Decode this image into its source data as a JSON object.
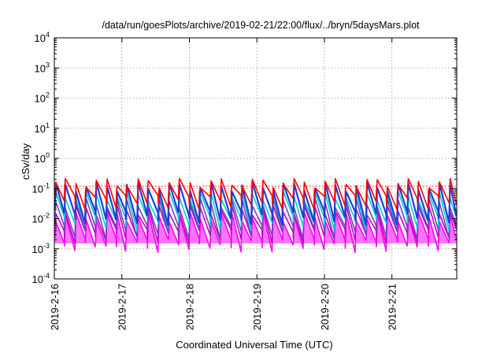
{
  "chart_data": {
    "type": "line",
    "title": "/data/run/goesPlots/archive/2019-02-21/22:00/flux/../bryn/5daysMars.plot",
    "xlabel": "Coordinated Universal Time (UTC)",
    "ylabel": "cSv/day",
    "y_scale": "log",
    "ylim": [
      0.0001,
      10000
    ],
    "y_ticks": [
      {
        "base": "10",
        "exp": "-4"
      },
      {
        "base": "10",
        "exp": "-3"
      },
      {
        "base": "10",
        "exp": "-2"
      },
      {
        "base": "10",
        "exp": "-1"
      },
      {
        "base": "10",
        "exp": "0"
      },
      {
        "base": "10",
        "exp": "1"
      },
      {
        "base": "10",
        "exp": "2"
      },
      {
        "base": "10",
        "exp": "3"
      },
      {
        "base": "10",
        "exp": "4"
      }
    ],
    "x_ticks": [
      "2019-2-16",
      "2019-2-17",
      "2019-2-18",
      "2019-2-19",
      "2019-2-20",
      "2019-2-21"
    ],
    "xlim_days": [
      0,
      5.96
    ],
    "grid": true,
    "legend": "none",
    "pattern": {
      "cycles_per_day": 6.5,
      "total_cycles": 38,
      "cycle_peak_day_offsets": [
        0.01,
        0.15,
        0.31,
        0.46,
        0.61,
        0.77,
        0.92,
        1.06,
        1.23,
        1.38,
        1.54,
        1.69,
        1.84,
        2.0,
        2.15,
        2.31,
        2.46,
        2.62,
        2.77,
        2.92,
        3.08,
        3.23,
        3.38,
        3.54,
        3.69,
        3.85,
        4.0,
        4.15,
        4.31,
        4.46,
        4.62,
        4.77,
        4.92,
        5.08,
        5.23,
        5.38,
        5.54,
        5.69,
        5.85
      ]
    },
    "series": [
      {
        "color": "#ff0000",
        "peak": 0.16,
        "trough": 0.04
      },
      {
        "color": "#1f3fd8",
        "peak": 0.12,
        "trough": 0.012
      },
      {
        "color": "#00d0d0",
        "peak": 0.06,
        "trough": 0.008
      },
      {
        "color": "#7a3fc0",
        "peak": 0.035,
        "trough": 0.004
      },
      {
        "color": "#c000c0",
        "peak": 0.02,
        "trough": 0.003
      },
      {
        "color": "#ff00ff",
        "peak": 0.012,
        "trough": 0.0015
      }
    ],
    "envelope_min": 0.0013,
    "reference_line": {
      "color": "#ff0000",
      "value": 0.12
    }
  }
}
